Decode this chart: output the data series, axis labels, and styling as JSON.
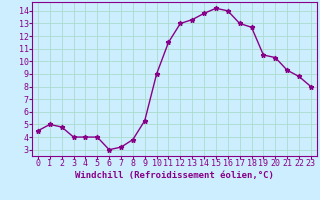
{
  "x": [
    0,
    1,
    2,
    3,
    4,
    5,
    6,
    7,
    8,
    9,
    10,
    11,
    12,
    13,
    14,
    15,
    16,
    17,
    18,
    19,
    20,
    21,
    22,
    23
  ],
  "y": [
    4.5,
    5.0,
    4.8,
    4.0,
    4.0,
    4.0,
    3.0,
    3.2,
    3.8,
    5.3,
    9.0,
    11.5,
    13.0,
    13.3,
    13.8,
    14.2,
    14.0,
    13.0,
    12.7,
    10.5,
    10.3,
    9.3,
    8.8,
    8.0
  ],
  "line_color": "#880088",
  "marker": "*",
  "marker_size": 3.5,
  "xlabel": "Windchill (Refroidissement éolien,°C)",
  "xlabel_fontsize": 6.5,
  "ylabel_ticks": [
    3,
    4,
    5,
    6,
    7,
    8,
    9,
    10,
    11,
    12,
    13,
    14
  ],
  "xtick_labels": [
    "0",
    "1",
    "2",
    "3",
    "4",
    "5",
    "6",
    "7",
    "8",
    "9",
    "10",
    "11",
    "12",
    "13",
    "14",
    "15",
    "16",
    "17",
    "18",
    "19",
    "20",
    "21",
    "22",
    "23"
  ],
  "ylim": [
    2.5,
    14.7
  ],
  "xlim": [
    -0.5,
    23.5
  ],
  "bg_color": "#cceeff",
  "grid_color": "#aaddcc",
  "tick_fontsize": 6,
  "line_width": 1.0
}
